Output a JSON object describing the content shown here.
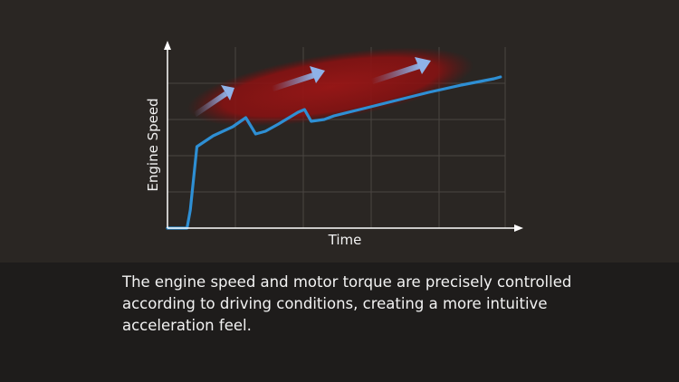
{
  "caption": "The engine speed and motor torque are precisely controlled according to driving conditions, creating a more intuitive acceleration feel.",
  "colors": {
    "background": "#2a2623",
    "caption_bar": "#1e1c1b",
    "line": "#2e8fd4",
    "highlight": "#8a1414",
    "arrow": "#7f9fd6",
    "grid": "#4a4542",
    "axis": "#ffffff"
  },
  "chart_data": {
    "type": "line",
    "title": "",
    "xlabel": "Time",
    "ylabel": "Engine Speed",
    "grid": true,
    "tick_labels": false,
    "annotations": [
      "highlighted region with three rising arrows"
    ],
    "series": [
      {
        "x": [
          0,
          3,
          3.5,
          4.5,
          7,
          10,
          12,
          13.5,
          15,
          17,
          20,
          21,
          22,
          24,
          25.5,
          30,
          35,
          40,
          45,
          50,
          51
        ],
        "y": [
          0,
          0,
          1,
          4.5,
          5.1,
          5.6,
          6.1,
          5.2,
          5.35,
          5.75,
          6.4,
          6.55,
          5.9,
          6.0,
          6.2,
          6.6,
          7.05,
          7.5,
          7.9,
          8.25,
          8.35
        ]
      }
    ],
    "xlim": [
      0,
      52
    ],
    "ylim": [
      0,
      10
    ]
  }
}
